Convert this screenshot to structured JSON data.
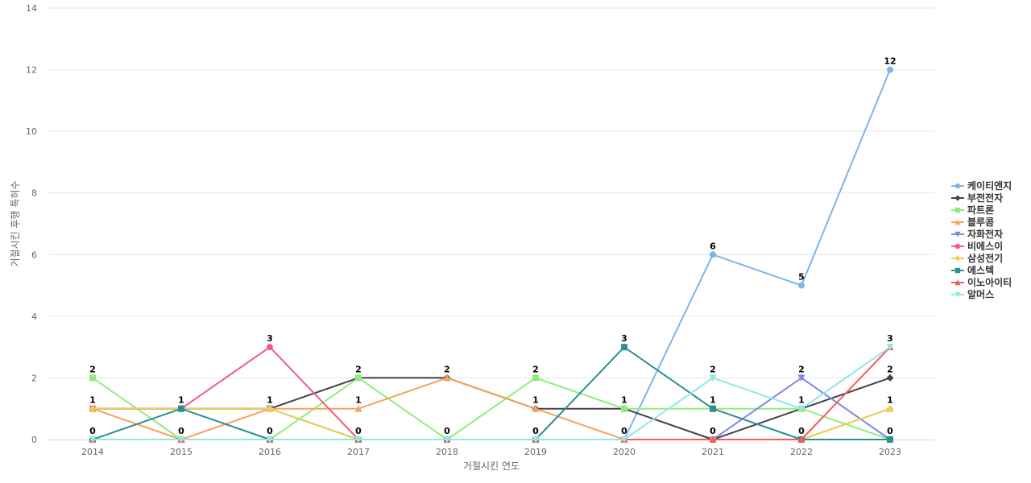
{
  "chart_data": {
    "type": "line",
    "title": "",
    "xlabel": "거절시킨 연도",
    "ylabel": "거절시킨 후행 특허수",
    "x": [
      "2014",
      "2015",
      "2016",
      "2017",
      "2018",
      "2019",
      "2020",
      "2021",
      "2022",
      "2023"
    ],
    "ylim": [
      0,
      14
    ],
    "yticks": [
      0,
      2,
      4,
      6,
      8,
      10,
      12,
      14
    ],
    "grid": true,
    "legend_position": "right",
    "series": [
      {
        "name": "케이티앤지",
        "color": "#7cb5ec",
        "marker": "circle",
        "values": [
          0,
          0,
          0,
          0,
          0,
          0,
          0,
          6,
          5,
          12
        ]
      },
      {
        "name": "부전전자",
        "color": "#434348",
        "marker": "diamond",
        "values": [
          1,
          1,
          1,
          2,
          2,
          1,
          1,
          0,
          1,
          2
        ]
      },
      {
        "name": "파트론",
        "color": "#90ed7d",
        "marker": "square",
        "values": [
          2,
          0,
          0,
          2,
          0,
          2,
          1,
          1,
          1,
          0
        ]
      },
      {
        "name": "블루콤",
        "color": "#f7a35c",
        "marker": "triangle",
        "values": [
          1,
          0,
          1,
          1,
          2,
          1,
          0,
          0,
          0,
          1
        ]
      },
      {
        "name": "자화전자",
        "color": "#8085e9",
        "marker": "triangle-down",
        "values": [
          1,
          1,
          1,
          0,
          0,
          0,
          0,
          0,
          2,
          0
        ]
      },
      {
        "name": "비에스이",
        "color": "#f15c80",
        "marker": "circle",
        "values": [
          1,
          1,
          3,
          0,
          0,
          0,
          0,
          0,
          0,
          0
        ]
      },
      {
        "name": "삼성전기",
        "color": "#e4d354",
        "marker": "diamond",
        "values": [
          1,
          1,
          1,
          0,
          0,
          0,
          0,
          0,
          0,
          1
        ]
      },
      {
        "name": "에스텍",
        "color": "#2b908f",
        "marker": "square",
        "values": [
          0,
          1,
          0,
          0,
          0,
          0,
          3,
          1,
          0,
          0
        ]
      },
      {
        "name": "이노아이티",
        "color": "#f45b5b",
        "marker": "triangle",
        "values": [
          0,
          0,
          0,
          0,
          0,
          0,
          0,
          0,
          0,
          3
        ]
      },
      {
        "name": "알머스",
        "color": "#91e8e1",
        "marker": "triangle-down",
        "values": [
          0,
          0,
          0,
          0,
          0,
          0,
          0,
          2,
          1,
          3
        ]
      }
    ],
    "data_labels": [
      {
        "x": "2014",
        "values": [
          "2",
          "1",
          "0"
        ]
      },
      {
        "x": "2015",
        "values": [
          "1",
          "0"
        ]
      },
      {
        "x": "2016",
        "values": [
          "3",
          "1",
          "0"
        ]
      },
      {
        "x": "2017",
        "values": [
          "2",
          "1",
          "0"
        ]
      },
      {
        "x": "2018",
        "values": [
          "2",
          "0"
        ]
      },
      {
        "x": "2019",
        "values": [
          "2",
          "1",
          "0"
        ]
      },
      {
        "x": "2020",
        "values": [
          "3",
          "1",
          "0"
        ]
      },
      {
        "x": "2021",
        "values": [
          "6",
          "2",
          "1",
          "0"
        ]
      },
      {
        "x": "2022",
        "values": [
          "5",
          "2",
          "1",
          "0"
        ]
      },
      {
        "x": "2023",
        "values": [
          "12",
          "3",
          "2",
          "1",
          "0"
        ]
      }
    ]
  }
}
